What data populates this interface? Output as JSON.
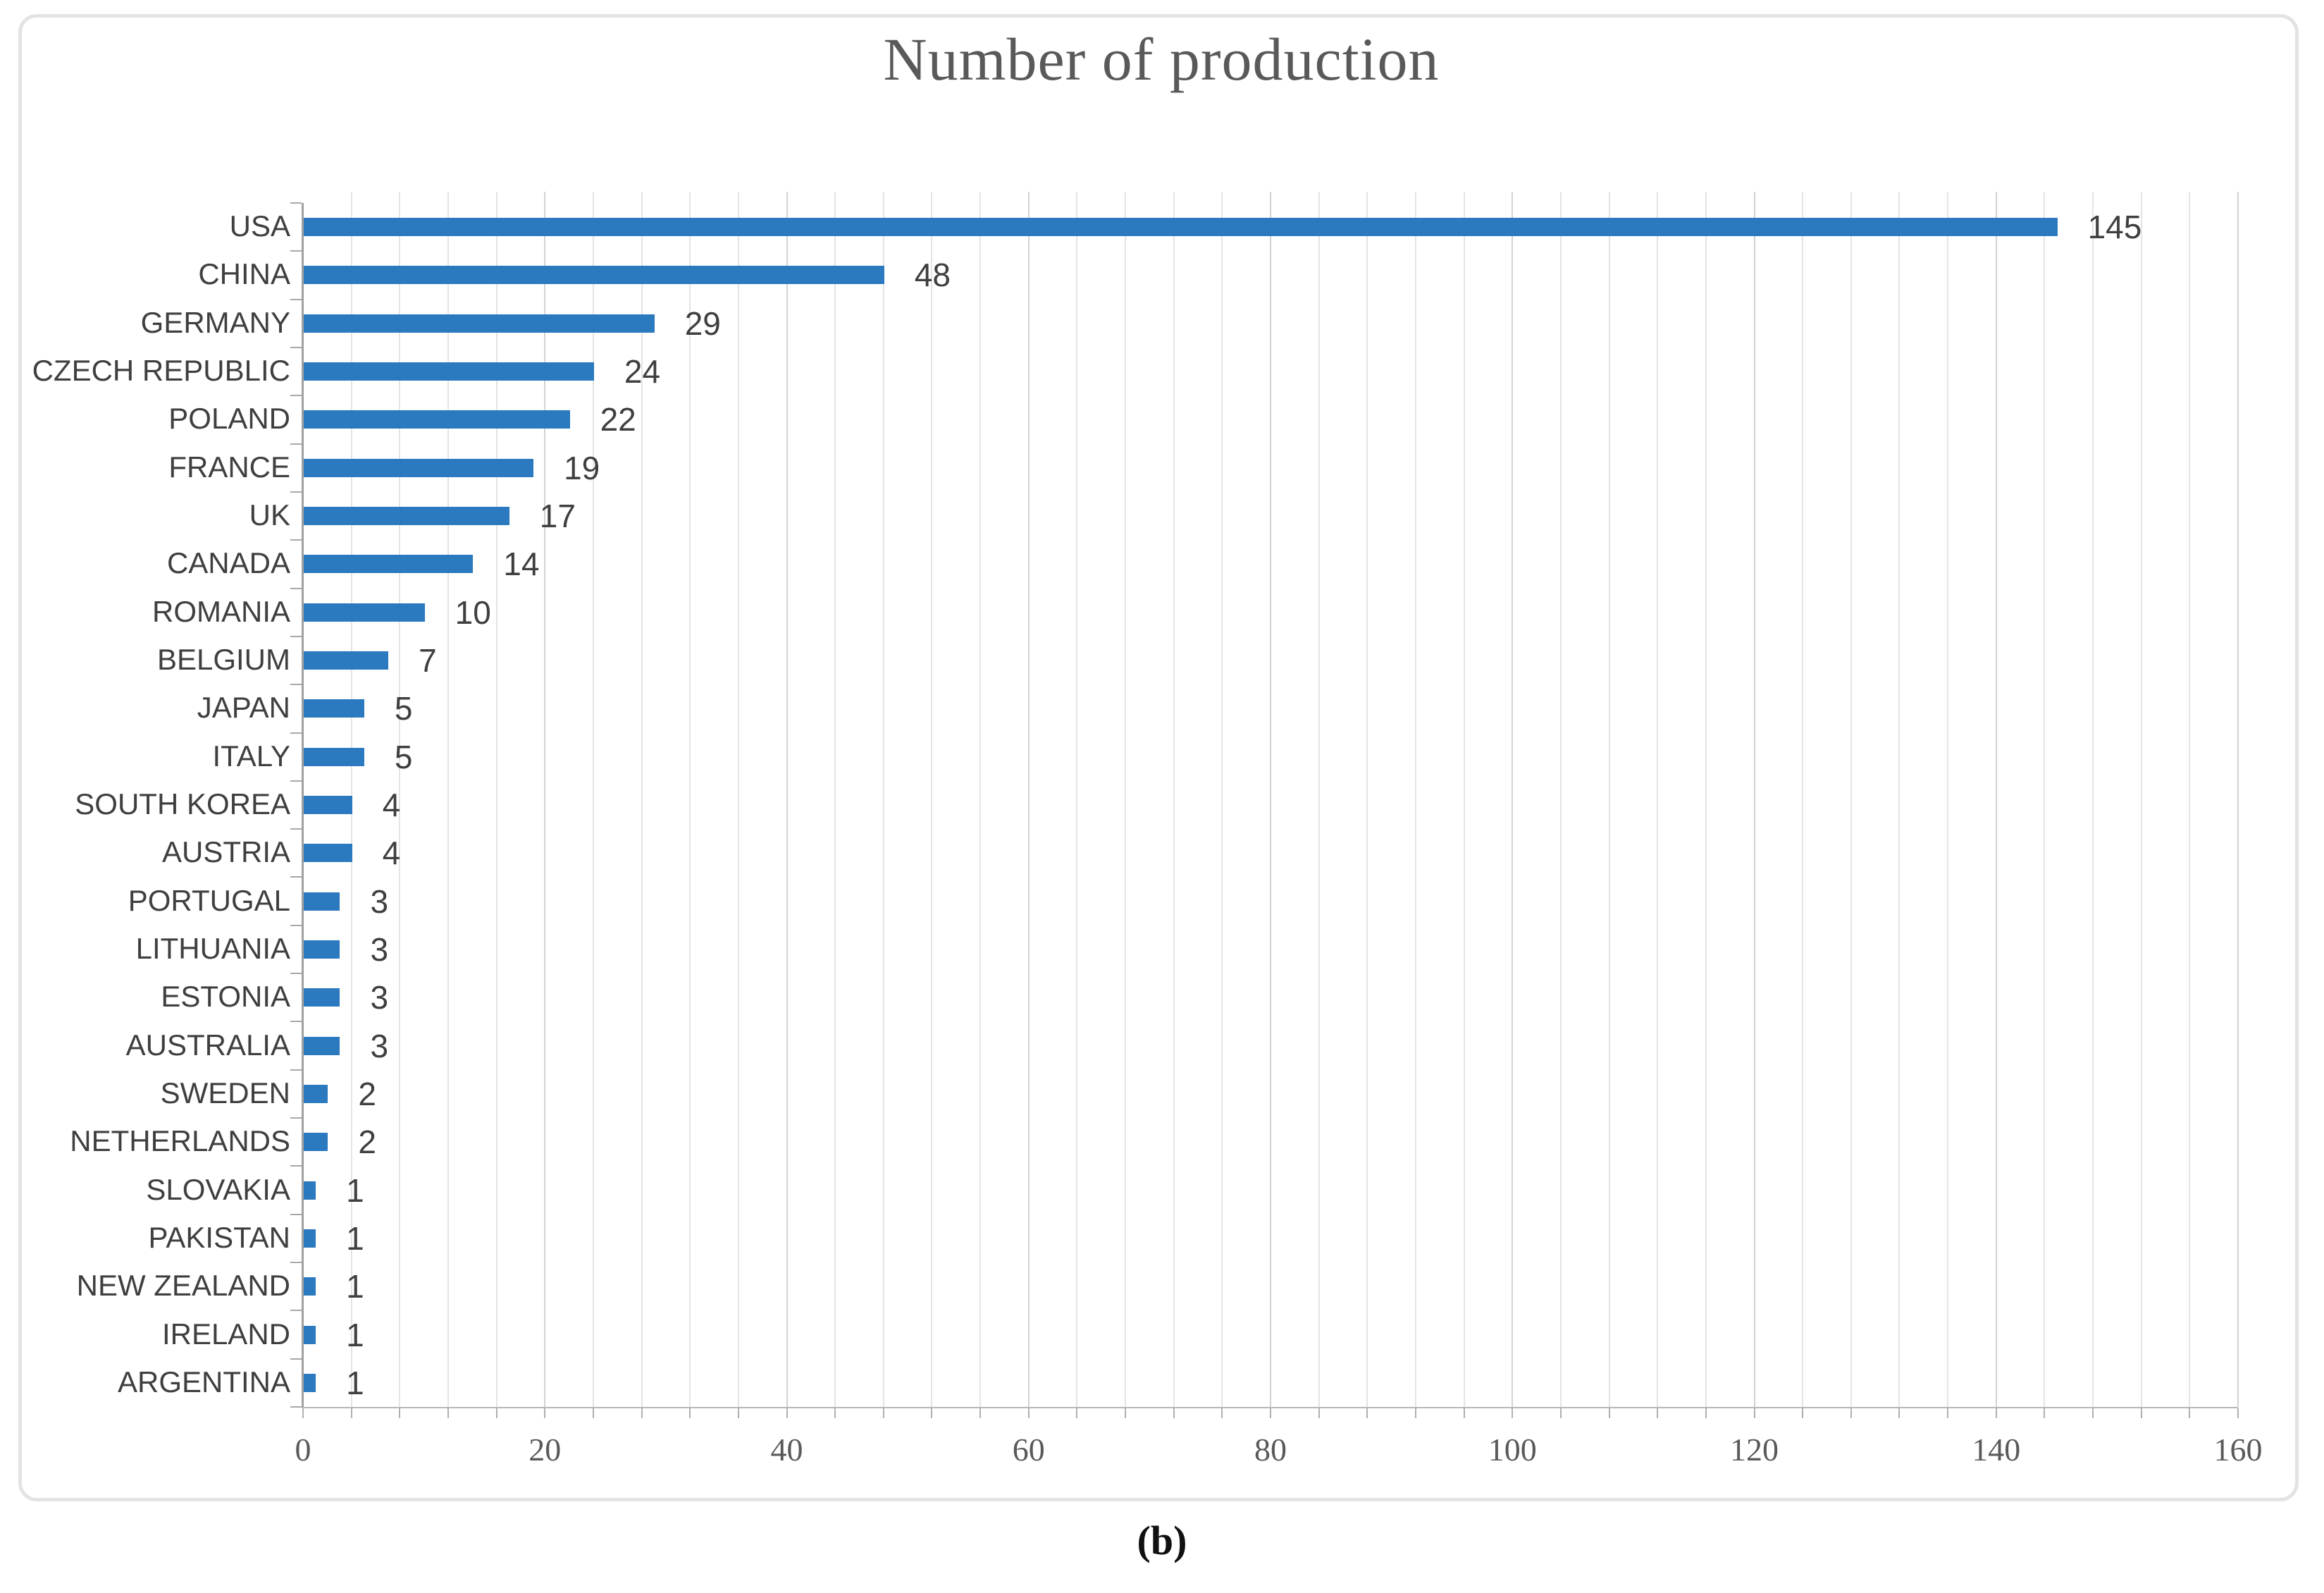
{
  "page": {
    "background": "#ffffff",
    "caption": "(b)"
  },
  "chart": {
    "frame_border_color": "#e3e3e3",
    "bar_color": "#2b7abf",
    "title_color": "#595959",
    "category_label_color": "#3f3f3f",
    "value_label_color": "#3f3f3f",
    "tick_label_color": "#595959",
    "axis_line_color": "#a0a0a0",
    "minor_gridline_color": "#e4e4e4",
    "major_gridline_color": "#d2d2d2"
  },
  "chart_data": {
    "type": "bar",
    "orientation": "horizontal",
    "title": "Number of production",
    "categories": [
      "USA",
      "CHINA",
      "GERMANY",
      "CZECH REPUBLIC",
      "POLAND",
      "FRANCE",
      "UK",
      "CANADA",
      "ROMANIA",
      "BELGIUM",
      "JAPAN",
      "ITALY",
      "SOUTH KOREA",
      "AUSTRIA",
      "PORTUGAL",
      "LITHUANIA",
      "ESTONIA",
      "AUSTRALIA",
      "SWEDEN",
      "NETHERLANDS",
      "SLOVAKIA",
      "PAKISTAN",
      "NEW ZEALAND",
      "IRELAND",
      "ARGENTINA"
    ],
    "values": [
      145,
      48,
      29,
      24,
      22,
      19,
      17,
      14,
      10,
      7,
      5,
      5,
      4,
      4,
      3,
      3,
      3,
      3,
      2,
      2,
      1,
      1,
      1,
      1,
      1
    ],
    "xlabel": "",
    "ylabel": "",
    "xlim": [
      0,
      160
    ],
    "x_major_tick_step": 20,
    "x_minor_grid_step": 4,
    "grid": true,
    "data_labels": true,
    "legend": "none"
  }
}
